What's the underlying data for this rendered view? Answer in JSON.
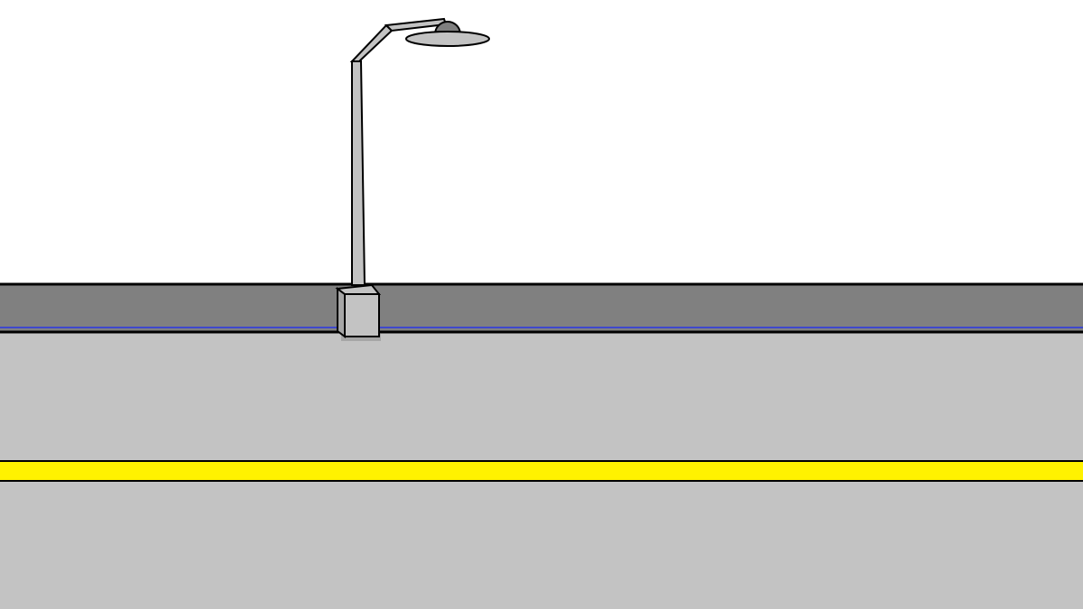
{
  "scene": {
    "sky_color": "#ffffff",
    "road_color": "#c3c3c3",
    "wall_color": "#808080",
    "wall_trim_color": "#3f48cc",
    "center_line_color": "#fff200",
    "outline_color": "#000000",
    "lamp_post_color": "#c3c3c3",
    "lamp_head_color": "#7f7f7f",
    "lamp_shade_color": "#c3c3c3",
    "lamp_base_color": "#c3c3c3"
  }
}
